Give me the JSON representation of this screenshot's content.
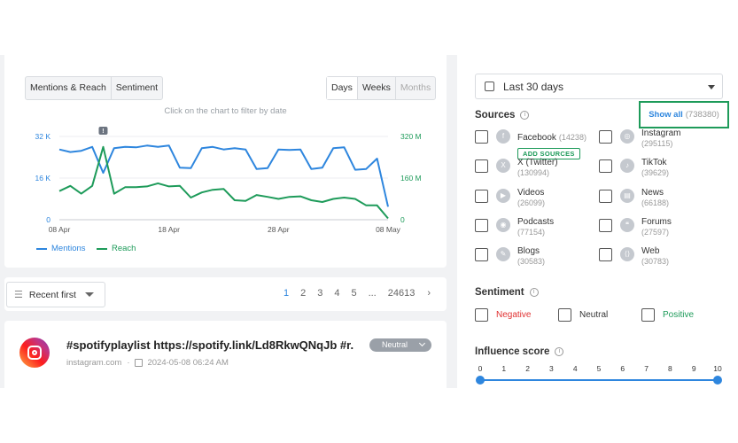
{
  "chart_card": {
    "tabs_left": [
      "Mentions & Reach",
      "Sentiment"
    ],
    "tabs_right": [
      "Days",
      "Weeks",
      "Months"
    ],
    "hint": "Click on the chart to filter by date",
    "legend": [
      "Mentions",
      "Reach"
    ]
  },
  "chart_data": {
    "type": "line",
    "x": [
      "08 Apr",
      "09 Apr",
      "10 Apr",
      "11 Apr",
      "12 Apr",
      "13 Apr",
      "14 Apr",
      "15 Apr",
      "16 Apr",
      "17 Apr",
      "18 Apr",
      "19 Apr",
      "20 Apr",
      "21 Apr",
      "22 Apr",
      "23 Apr",
      "24 Apr",
      "25 Apr",
      "26 Apr",
      "27 Apr",
      "28 Apr",
      "29 Apr",
      "30 Apr",
      "01 May",
      "02 May",
      "03 May",
      "04 May",
      "05 May",
      "06 May",
      "07 May",
      "08 May"
    ],
    "x_tick_labels": [
      "08 Apr",
      "18 Apr",
      "28 Apr",
      "08 May"
    ],
    "y_left_ticks": [
      "0",
      "16 K",
      "32 K"
    ],
    "y_right_ticks": [
      "0",
      "160 M",
      "320 M"
    ],
    "ylim_left": [
      0,
      32000
    ],
    "ylim_right": [
      0,
      320000000
    ],
    "series": [
      {
        "name": "Mentions",
        "axis": "left",
        "color": "#2e86de",
        "values": [
          27000,
          26000,
          26500,
          28000,
          18000,
          27500,
          28000,
          27800,
          28500,
          28000,
          28500,
          20000,
          19800,
          27500,
          28000,
          27000,
          27500,
          27000,
          19500,
          19800,
          27000,
          26800,
          27000,
          19500,
          20000,
          27500,
          27800,
          19200,
          19500,
          23500,
          5000
        ]
      },
      {
        "name": "Reach",
        "axis": "right",
        "color": "#1e9b5a",
        "values": [
          110000000,
          130000000,
          100000000,
          130000000,
          280000000,
          100000000,
          125000000,
          125000000,
          128000000,
          140000000,
          128000000,
          130000000,
          85000000,
          105000000,
          115000000,
          118000000,
          75000000,
          72000000,
          95000000,
          88000000,
          80000000,
          88000000,
          90000000,
          75000000,
          68000000,
          80000000,
          85000000,
          80000000,
          55000000,
          55000000,
          5000000
        ]
      }
    ],
    "annotation": "!"
  },
  "sort": {
    "label": "Recent first",
    "pages": [
      "1",
      "2",
      "3",
      "4",
      "5",
      "...",
      "24613"
    ]
  },
  "result": {
    "title": "#spotifyplaylist https://spotify.link/Ld8RkwQNqJb #r...",
    "domain": "instagram.com",
    "date": "2024-05-08 06:24 AM",
    "sentiment": "Neutral"
  },
  "side": {
    "date_range": "Last 30 days",
    "sources_title": "Sources",
    "show_all": "Show all",
    "show_all_count": "(738380)",
    "add_sources": "ADD SOURCES",
    "sources": [
      {
        "name": "Facebook",
        "count": "(14238)",
        "icon": "facebook-icon"
      },
      {
        "name": "Instagram",
        "count": "(295115)",
        "icon": "instagram-icon"
      },
      {
        "name": "X (Twitter)",
        "count": "(130994)",
        "icon": "x-icon"
      },
      {
        "name": "TikTok",
        "count": "(39629)",
        "icon": "tiktok-icon"
      },
      {
        "name": "Videos",
        "count": "(26099)",
        "icon": "video-icon"
      },
      {
        "name": "News",
        "count": "(66188)",
        "icon": "news-icon"
      },
      {
        "name": "Podcasts",
        "count": "(77154)",
        "icon": "podcast-icon"
      },
      {
        "name": "Forums",
        "count": "(27597)",
        "icon": "forum-icon"
      },
      {
        "name": "Blogs",
        "count": "(30583)",
        "icon": "blog-icon"
      },
      {
        "name": "Web",
        "count": "(30783)",
        "icon": "web-icon"
      }
    ],
    "sentiment_title": "Sentiment",
    "sentiments": [
      {
        "label": "Negative",
        "color": "#e03131"
      },
      {
        "label": "Neutral",
        "color": "#333333"
      },
      {
        "label": "Positive",
        "color": "#1e9b5a"
      }
    ],
    "influence_title": "Influence score",
    "influence_ticks": [
      "0",
      "1",
      "2",
      "3",
      "4",
      "5",
      "6",
      "7",
      "8",
      "9",
      "10"
    ],
    "influence_range": [
      0,
      10
    ]
  }
}
